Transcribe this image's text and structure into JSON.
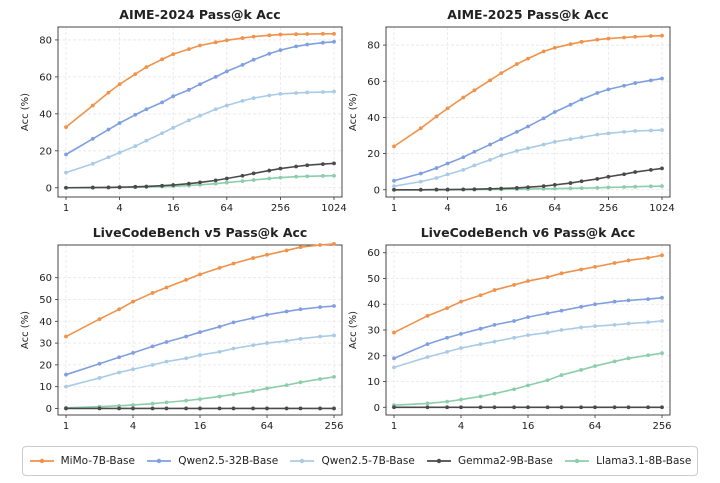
{
  "colors": {
    "MiMo-7B-Base": "#f0924a",
    "Qwen2.5-32B-Base": "#7f9fe0",
    "Qwen2.5-7B-Base": "#a9cbe6",
    "Gemma2-9B-Base": "#4a4a4a",
    "Llama3.1-8B-Base": "#8ccdab"
  },
  "legend": [
    "MiMo-7B-Base",
    "Qwen2.5-32B-Base",
    "Qwen2.5-7B-Base",
    "Gemma2-9B-Base",
    "Llama3.1-8B-Base"
  ],
  "chart_data": [
    {
      "type": "line",
      "title": "AIME-2024 Pass@k Acc",
      "xlabel": "",
      "ylabel": "Acc (%)",
      "x_scale": "log2",
      "x": [
        1,
        2,
        3,
        4,
        6,
        8,
        12,
        16,
        24,
        32,
        48,
        64,
        96,
        128,
        192,
        256,
        384,
        512,
        768,
        1024
      ],
      "xticks": [
        1,
        4,
        16,
        64,
        256,
        1024
      ],
      "xlim": [
        1,
        1024
      ],
      "ylim": [
        -5,
        87
      ],
      "yticks": [
        0,
        20,
        40,
        60,
        80
      ],
      "grid": true,
      "series": [
        {
          "name": "MiMo-7B-Base",
          "values": [
            32.8,
            44.5,
            51.5,
            56.0,
            61.5,
            65.3,
            69.5,
            72.3,
            75.0,
            77.0,
            78.7,
            79.8,
            81.0,
            81.8,
            82.5,
            82.9,
            83.1,
            83.2,
            83.3,
            83.3
          ]
        },
        {
          "name": "Qwen2.5-32B-Base",
          "values": [
            18.0,
            26.5,
            31.5,
            35.0,
            39.5,
            42.5,
            46.2,
            49.5,
            53.0,
            56.0,
            60.0,
            63.0,
            66.5,
            69.3,
            72.5,
            74.5,
            76.5,
            77.5,
            78.5,
            79.0
          ]
        },
        {
          "name": "Qwen2.5-7B-Base",
          "values": [
            8.2,
            13.0,
            16.5,
            19.0,
            22.5,
            25.5,
            29.5,
            32.5,
            36.5,
            39.0,
            42.5,
            44.5,
            47.0,
            48.5,
            50.0,
            50.8,
            51.3,
            51.6,
            51.8,
            52.0
          ]
        },
        {
          "name": "Gemma2-9B-Base",
          "values": [
            0.0,
            0.1,
            0.2,
            0.3,
            0.5,
            0.7,
            1.1,
            1.5,
            2.2,
            2.9,
            4.0,
            5.0,
            6.5,
            7.8,
            9.3,
            10.4,
            11.5,
            12.2,
            12.8,
            13.2
          ]
        },
        {
          "name": "Llama3.1-8B-Base",
          "values": [
            0.0,
            0.1,
            0.1,
            0.2,
            0.3,
            0.4,
            0.6,
            0.8,
            1.2,
            1.6,
            2.2,
            2.8,
            3.6,
            4.2,
            5.0,
            5.5,
            6.0,
            6.2,
            6.4,
            6.5
          ]
        }
      ]
    },
    {
      "type": "line",
      "title": "AIME-2025 Pass@k Acc",
      "xlabel": "",
      "ylabel": "Acc (%)",
      "x_scale": "log2",
      "x": [
        1,
        2,
        3,
        4,
        6,
        8,
        12,
        16,
        24,
        32,
        48,
        64,
        96,
        128,
        192,
        256,
        384,
        512,
        768,
        1024
      ],
      "xticks": [
        1,
        4,
        16,
        64,
        256,
        1024
      ],
      "xlim": [
        1,
        1024
      ],
      "ylim": [
        -4,
        90
      ],
      "yticks": [
        0,
        20,
        40,
        60,
        80
      ],
      "grid": true,
      "series": [
        {
          "name": "MiMo-7B-Base",
          "values": [
            24.0,
            34.0,
            40.5,
            45.0,
            51.0,
            55.0,
            60.5,
            64.5,
            69.5,
            72.5,
            76.5,
            78.5,
            80.5,
            81.8,
            83.0,
            83.6,
            84.2,
            84.6,
            85.0,
            85.2
          ]
        },
        {
          "name": "Qwen2.5-32B-Base",
          "values": [
            5.0,
            9.0,
            12.0,
            14.5,
            18.0,
            21.0,
            25.0,
            28.0,
            32.0,
            35.0,
            39.5,
            43.0,
            47.0,
            50.0,
            53.5,
            55.5,
            57.5,
            59.0,
            60.5,
            61.5
          ]
        },
        {
          "name": "Qwen2.5-7B-Base",
          "values": [
            2.0,
            4.5,
            6.5,
            8.5,
            11.0,
            13.5,
            16.5,
            19.0,
            21.5,
            23.0,
            25.0,
            26.5,
            28.0,
            29.0,
            30.5,
            31.2,
            32.0,
            32.5,
            32.8,
            33.0
          ]
        },
        {
          "name": "Gemma2-9B-Base",
          "values": [
            0.0,
            0.0,
            0.1,
            0.1,
            0.2,
            0.3,
            0.5,
            0.7,
            1.0,
            1.4,
            2.0,
            2.7,
            3.7,
            4.7,
            6.0,
            7.2,
            8.6,
            9.8,
            11.0,
            11.8
          ]
        },
        {
          "name": "Llama3.1-8B-Base",
          "values": [
            0.0,
            0.0,
            0.0,
            0.0,
            0.1,
            0.1,
            0.2,
            0.2,
            0.3,
            0.4,
            0.5,
            0.6,
            0.8,
            0.9,
            1.1,
            1.3,
            1.5,
            1.7,
            1.9,
            2.0
          ]
        }
      ]
    },
    {
      "type": "line",
      "title": "LiveCodeBench v5 Pass@k Acc",
      "xlabel": "",
      "ylabel": "Acc (%)",
      "x_scale": "log2",
      "x": [
        1,
        2,
        3,
        4,
        6,
        8,
        12,
        16,
        24,
        32,
        48,
        64,
        96,
        128,
        192,
        256
      ],
      "xticks": [
        1,
        4,
        16,
        64,
        256
      ],
      "xlim": [
        1,
        256
      ],
      "ylim": [
        -3,
        75
      ],
      "yticks": [
        0,
        10,
        20,
        30,
        40,
        50,
        60
      ],
      "grid": true,
      "series": [
        {
          "name": "MiMo-7B-Base",
          "values": [
            33.0,
            41.0,
            45.5,
            49.0,
            53.0,
            55.5,
            59.0,
            61.5,
            64.5,
            66.5,
            69.0,
            70.5,
            72.5,
            74.0,
            75.0,
            75.5
          ]
        },
        {
          "name": "Qwen2.5-32B-Base",
          "values": [
            15.5,
            20.5,
            23.5,
            25.5,
            28.5,
            30.5,
            33.0,
            35.0,
            37.5,
            39.5,
            41.5,
            43.0,
            44.5,
            45.5,
            46.5,
            47.0
          ]
        },
        {
          "name": "Qwen2.5-7B-Base",
          "values": [
            10.0,
            14.0,
            16.5,
            18.0,
            20.0,
            21.5,
            23.0,
            24.5,
            26.0,
            27.5,
            29.0,
            30.0,
            31.0,
            32.0,
            33.0,
            33.5
          ]
        },
        {
          "name": "Gemma2-9B-Base",
          "values": [
            0.0,
            0.0,
            0.0,
            0.0,
            0.0,
            0.0,
            0.0,
            0.0,
            0.0,
            0.0,
            0.0,
            0.0,
            0.0,
            0.0,
            0.0,
            0.0
          ]
        },
        {
          "name": "Llama3.1-8B-Base",
          "values": [
            0.3,
            0.8,
            1.2,
            1.6,
            2.2,
            2.8,
            3.6,
            4.3,
            5.5,
            6.5,
            8.0,
            9.2,
            10.7,
            12.0,
            13.5,
            14.5
          ]
        }
      ]
    },
    {
      "type": "line",
      "title": "LiveCodeBench v6 Pass@k Acc",
      "xlabel": "",
      "ylabel": "Acc (%)",
      "x_scale": "log2",
      "x": [
        1,
        2,
        3,
        4,
        6,
        8,
        12,
        16,
        24,
        32,
        48,
        64,
        96,
        128,
        192,
        256
      ],
      "xticks": [
        1,
        4,
        16,
        64,
        256
      ],
      "xlim": [
        1,
        256
      ],
      "ylim": [
        -3,
        63
      ],
      "yticks": [
        0,
        10,
        20,
        30,
        40,
        50,
        60
      ],
      "grid": true,
      "series": [
        {
          "name": "MiMo-7B-Base",
          "values": [
            29.0,
            35.5,
            38.5,
            41.0,
            43.5,
            45.5,
            47.5,
            49.0,
            50.5,
            52.0,
            53.5,
            54.5,
            56.0,
            57.0,
            58.0,
            59.0
          ]
        },
        {
          "name": "Qwen2.5-32B-Base",
          "values": [
            19.0,
            24.5,
            27.0,
            28.5,
            30.5,
            32.0,
            33.5,
            35.0,
            36.5,
            37.5,
            39.0,
            40.0,
            41.0,
            41.5,
            42.0,
            42.5
          ]
        },
        {
          "name": "Qwen2.5-7B-Base",
          "values": [
            15.5,
            19.5,
            21.5,
            23.0,
            24.5,
            25.5,
            27.0,
            28.0,
            29.0,
            30.0,
            31.0,
            31.5,
            32.0,
            32.5,
            33.0,
            33.5
          ]
        },
        {
          "name": "Gemma2-9B-Base",
          "values": [
            0.0,
            0.0,
            0.0,
            0.0,
            0.0,
            0.0,
            0.0,
            0.0,
            0.0,
            0.0,
            0.0,
            0.0,
            0.0,
            0.0,
            0.0,
            0.0
          ]
        },
        {
          "name": "Llama3.1-8B-Base",
          "values": [
            0.8,
            1.5,
            2.2,
            3.0,
            4.2,
            5.3,
            7.0,
            8.5,
            10.5,
            12.5,
            14.5,
            16.0,
            17.8,
            19.0,
            20.2,
            21.0
          ]
        }
      ]
    }
  ]
}
